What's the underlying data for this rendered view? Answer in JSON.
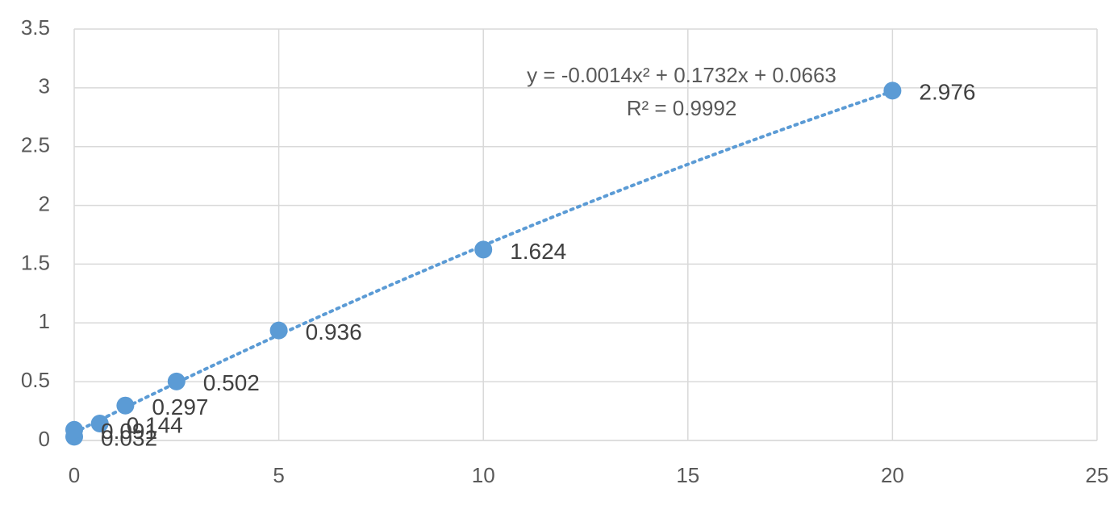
{
  "chart_data": {
    "type": "scatter",
    "x": [
      0,
      0,
      0.625,
      1.25,
      2.5,
      5,
      10,
      20
    ],
    "series": [
      {
        "color": "#5b9bd5",
        "values": [
          0.032,
          0.091,
          0.144,
          0.297,
          0.502,
          0.936,
          1.624,
          2.976
        ]
      }
    ],
    "xlim": [
      0,
      25
    ],
    "xticks": [
      0,
      5,
      10,
      15,
      20,
      25
    ],
    "ylim": [
      0,
      3.5
    ],
    "yticks": [
      0,
      0.5,
      1,
      1.5,
      2,
      2.5,
      3,
      3.5
    ],
    "grid": true,
    "trendline": {
      "type": "polynomial",
      "coefficients": [
        -0.0014,
        0.1732,
        0.0663
      ],
      "label": "y = -0.0014x² + 0.1732x + 0.0663",
      "r2_label": "R² = 0.9992"
    }
  }
}
